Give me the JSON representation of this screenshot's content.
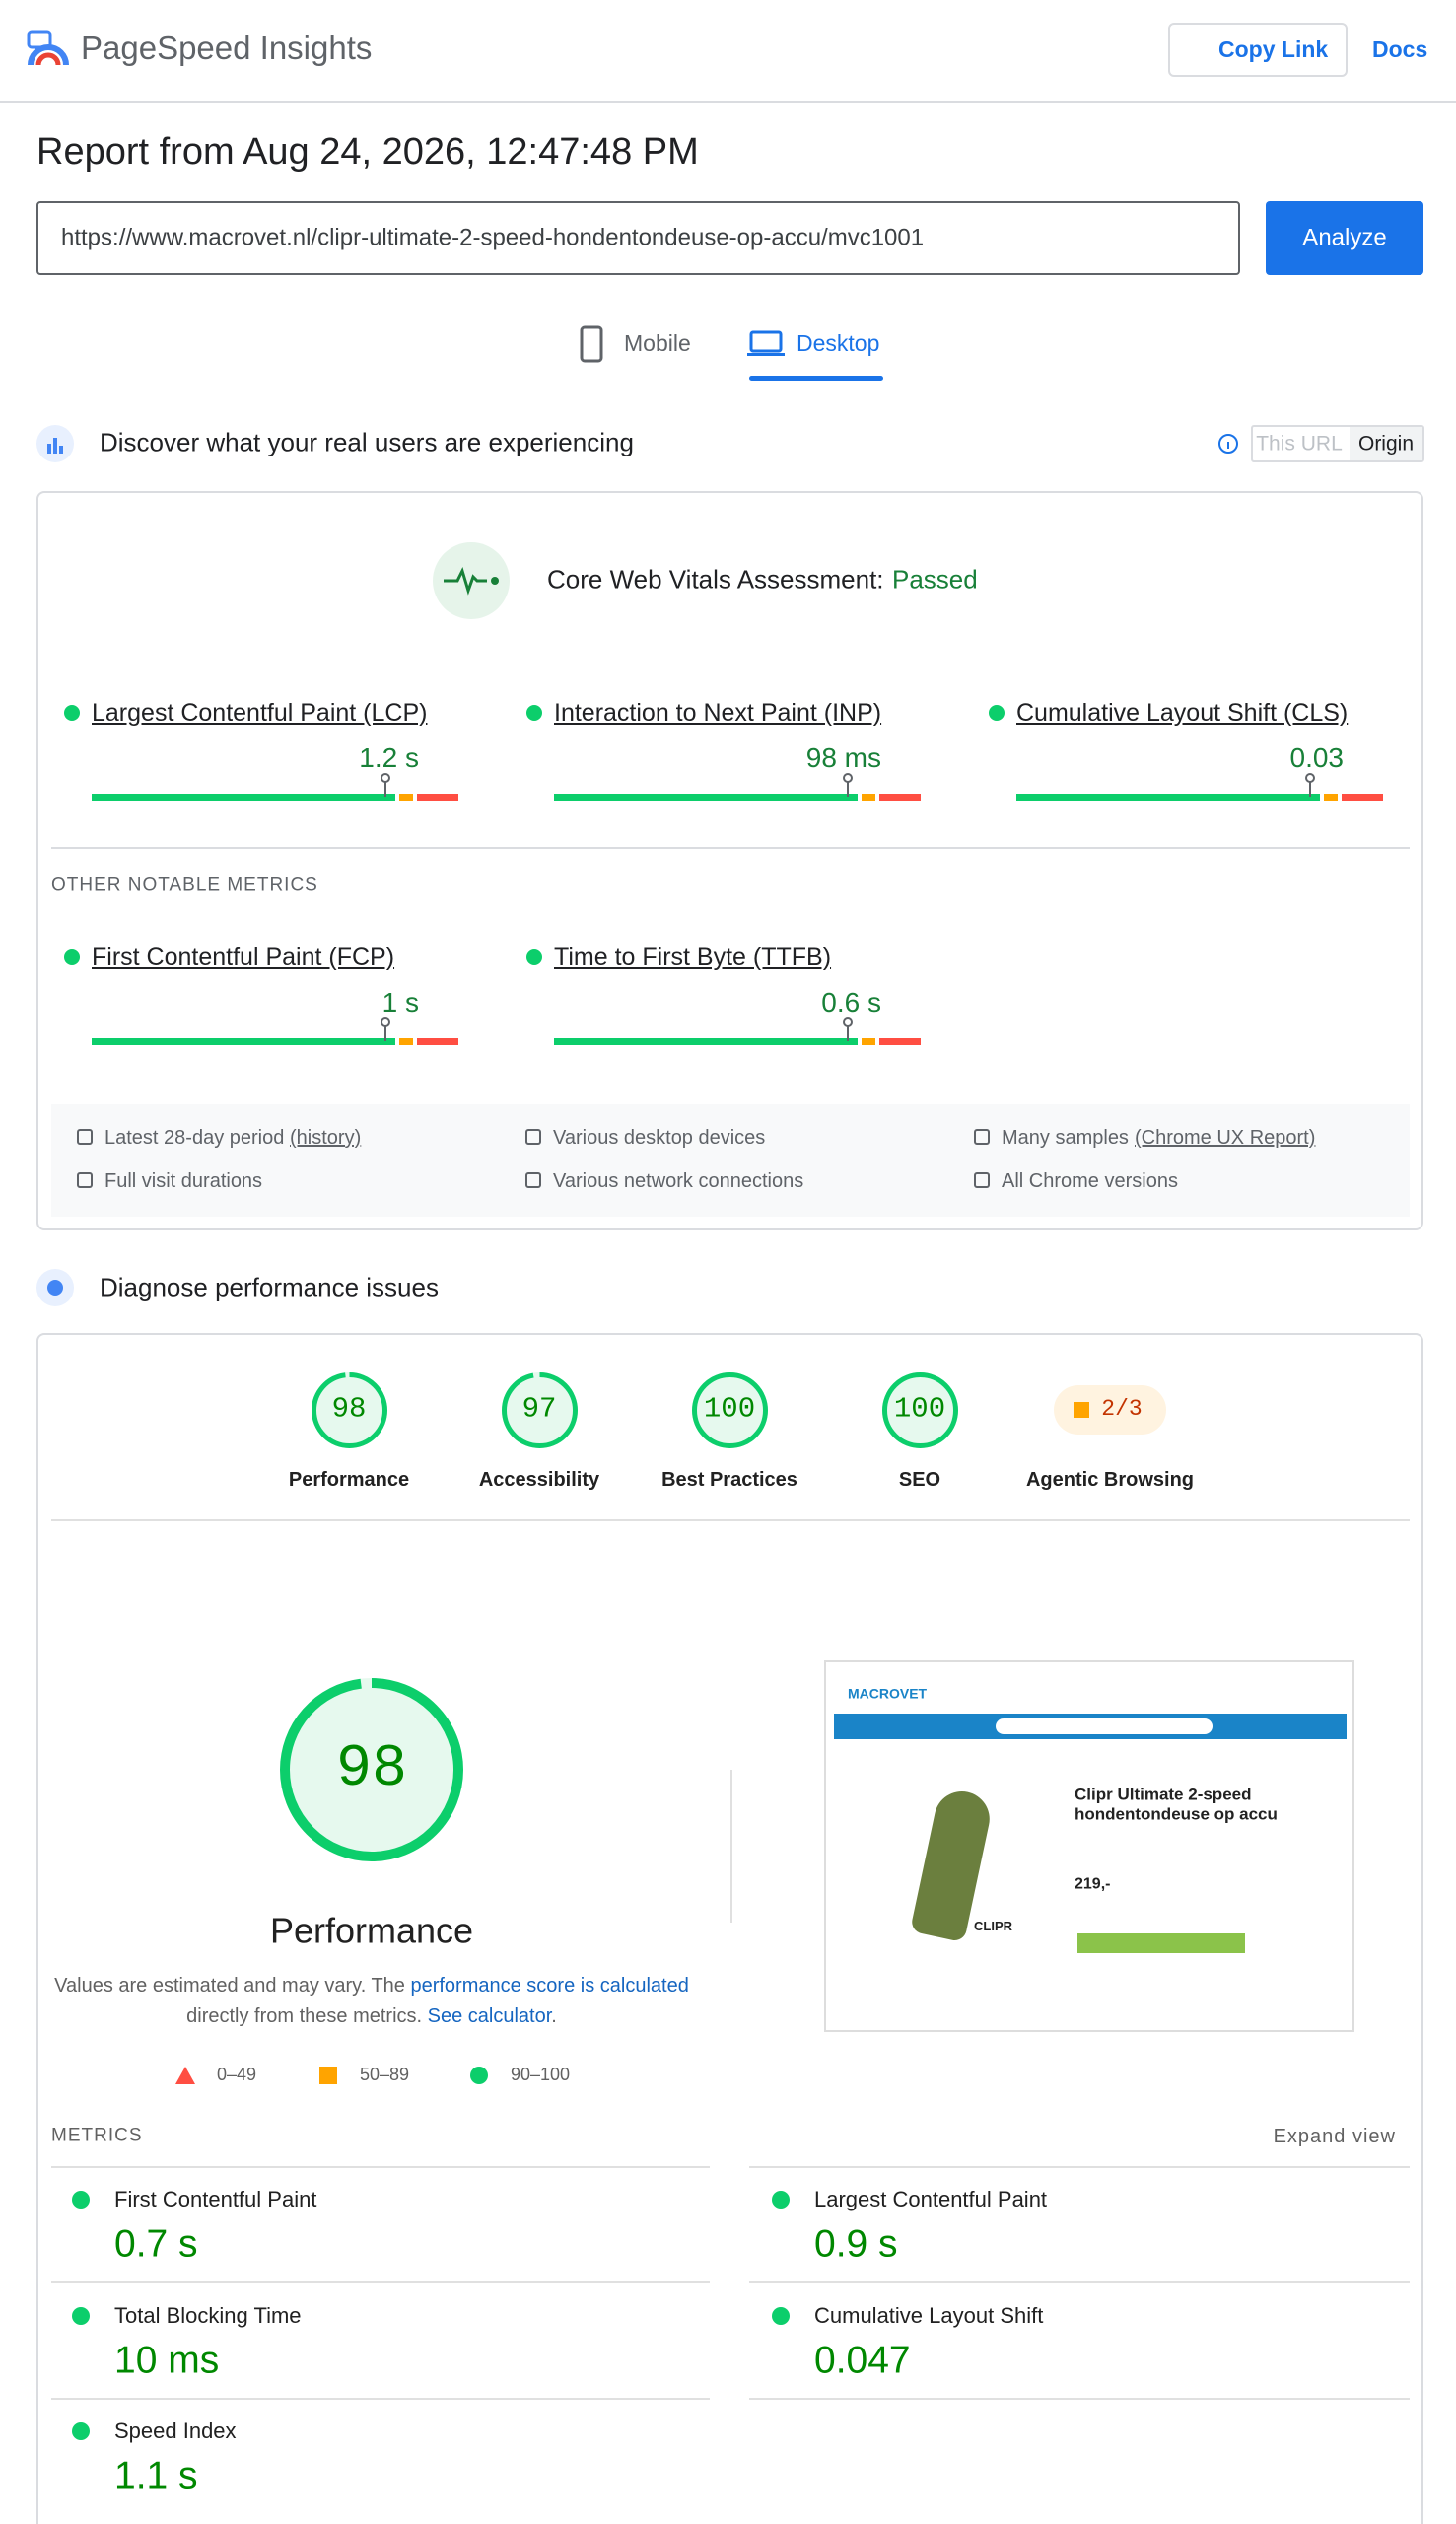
{
  "header": {
    "title": "PageSpeed Insights",
    "copy_link": "Copy Link",
    "docs": "Docs"
  },
  "report": {
    "title": "Report from Aug 24, 2026, 12:47:48 PM",
    "url": "https://www.macrovet.nl/clipr-ultimate-2-speed-hondentondeuse-op-accu/mvc1001",
    "analyze": "Analyze"
  },
  "tabs": [
    "Mobile",
    "Desktop"
  ],
  "field": {
    "title": "Discover what your real users are experiencing",
    "toggle": [
      "This URL",
      "Origin"
    ],
    "assessment_label": "Core Web Vitals Assessment:",
    "assessment_result": "Passed",
    "core_metrics": [
      {
        "name": "Largest Contentful Paint (LCP)",
        "value": "1.2 s"
      },
      {
        "name": "Interaction to Next Paint (INP)",
        "value": "98 ms"
      },
      {
        "name": "Cumulative Layout Shift (CLS)",
        "value": "0.03"
      }
    ],
    "other_label": "OTHER NOTABLE METRICS",
    "other_metrics": [
      {
        "name": "First Contentful Paint (FCP)",
        "value": "1 s"
      },
      {
        "name": "Time to First Byte (TTFB)",
        "value": "0.6 s"
      }
    ],
    "info": [
      {
        "text": "Latest 28-day period",
        "link": "(history)"
      },
      {
        "text": "Various desktop devices"
      },
      {
        "text": "Many samples",
        "link": "(Chrome UX Report)"
      },
      {
        "text": "Full visit durations"
      },
      {
        "text": "Various network connections"
      },
      {
        "text": "All Chrome versions"
      }
    ]
  },
  "lab": {
    "title": "Diagnose performance issues",
    "categories": [
      {
        "label": "Performance",
        "score": 98
      },
      {
        "label": "Accessibility",
        "score": 97
      },
      {
        "label": "Best Practices",
        "score": 100
      },
      {
        "label": "SEO",
        "score": 100
      },
      {
        "label": "Agentic Browsing",
        "score_text": "2/3"
      }
    ],
    "note": [
      "Values are estimated and may vary. The ",
      "performance score is calculated",
      "directly from these metrics. ",
      "See calculator",
      "."
    ],
    "legend": [
      "0–49",
      "50–89",
      "90–100"
    ],
    "screenshot": {
      "brand": "MACROVET",
      "product": "Clipr Ultimate 2-speed hondentondeuse op accu",
      "price": "219,-",
      "logo": "CLIPR"
    },
    "metrics": {
      "label": "METRICS",
      "expand": "Expand view",
      "items": [
        {
          "name": "First Contentful Paint",
          "value": "0.7 s"
        },
        {
          "name": "Largest Contentful Paint",
          "value": "0.9 s"
        },
        {
          "name": "Total Blocking Time",
          "value": "10 ms"
        },
        {
          "name": "Cumulative Layout Shift",
          "value": "0.047"
        },
        {
          "name": "Speed Index",
          "value": "1.1 s"
        }
      ]
    }
  }
}
